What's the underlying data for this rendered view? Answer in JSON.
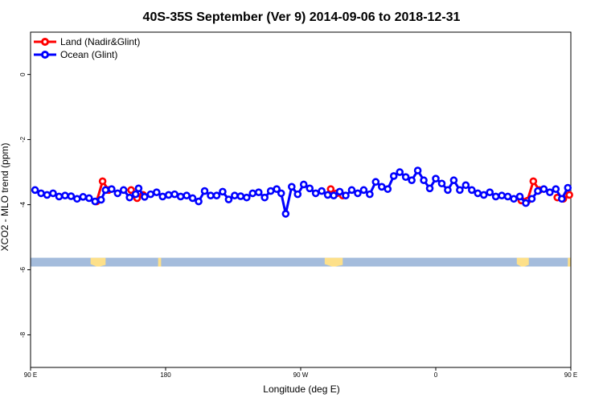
{
  "chart_data": {
    "type": "line",
    "title": "40S-35S September (Ver 9)   2014-09-06 to 2018-12-31",
    "xlabel": "Longitude (deg E)",
    "ylabel": "XCO2 - MLO trend (ppm)",
    "xlim": [
      90,
      450
    ],
    "ylim": [
      -9,
      1.3
    ],
    "x_ticks": [
      {
        "value": 90,
        "label": "90 E"
      },
      {
        "value": 180,
        "label": "180"
      },
      {
        "value": 270,
        "label": "90 W"
      },
      {
        "value": 360,
        "label": "0"
      },
      {
        "value": 450,
        "label": "90 E"
      },
      {
        "value": 540,
        "label": "180"
      }
    ],
    "y_ticks": [
      {
        "value": 0,
        "label": "0"
      },
      {
        "value": -2,
        "label": "-2"
      },
      {
        "value": -4,
        "label": "-4"
      },
      {
        "value": -6,
        "label": "-6"
      },
      {
        "value": -8,
        "label": "-8"
      }
    ],
    "grid": false,
    "legend_position": "top-left",
    "land_band": {
      "y_top": -5.63,
      "y_bottom": -5.9,
      "ocean_color": "#a4bcdc",
      "land_color": "#fde08a"
    },
    "land_patches": [
      {
        "x_from": 130,
        "x_to": 140
      },
      {
        "x_from": 175,
        "x_to": 177
      },
      {
        "x_from": 286,
        "x_to": 298
      },
      {
        "x_from": 414,
        "x_to": 422
      },
      {
        "x_from": 448,
        "x_to": 450
      }
    ],
    "series": [
      {
        "name": "Land (Nadir&Glint)",
        "color": "#ff0000",
        "segments": [
          [
            [
              134,
              -3.9
            ],
            [
              138,
              -3.28
            ],
            [
              142,
              -3.55
            ]
          ],
          [
            [
              157,
              -3.55
            ],
            [
              161,
              -3.8
            ],
            [
              165,
              -3.7
            ]
          ],
          [
            [
              290,
              -3.52
            ],
            [
              294,
              -3.65
            ],
            [
              298,
              -3.72
            ]
          ],
          [
            [
              417,
              -3.87
            ],
            [
              421,
              -3.88
            ],
            [
              425,
              -3.28
            ],
            [
              429,
              -3.55
            ]
          ],
          [
            [
              441,
              -3.78
            ],
            [
              445,
              -3.82
            ],
            [
              449,
              -3.7
            ]
          ]
        ]
      },
      {
        "name": "Ocean (Glint)",
        "color": "#0000ff",
        "values": [
          [
            93,
            -3.55
          ],
          [
            97,
            -3.65
          ],
          [
            101,
            -3.7
          ],
          [
            105,
            -3.65
          ],
          [
            109,
            -3.75
          ],
          [
            113,
            -3.72
          ],
          [
            117,
            -3.74
          ],
          [
            121,
            -3.82
          ],
          [
            125,
            -3.76
          ],
          [
            129,
            -3.8
          ],
          [
            133,
            -3.9
          ],
          [
            137,
            -3.85
          ],
          [
            140,
            -3.55
          ],
          [
            144,
            -3.52
          ],
          [
            148,
            -3.65
          ],
          [
            152,
            -3.55
          ],
          [
            156,
            -3.78
          ],
          [
            160,
            -3.68
          ],
          [
            162,
            -3.5
          ],
          [
            166,
            -3.76
          ],
          [
            170,
            -3.68
          ],
          [
            174,
            -3.62
          ],
          [
            178,
            -3.75
          ],
          [
            182,
            -3.7
          ],
          [
            186,
            -3.68
          ],
          [
            190,
            -3.75
          ],
          [
            194,
            -3.72
          ],
          [
            198,
            -3.8
          ],
          [
            202,
            -3.9
          ],
          [
            206,
            -3.58
          ],
          [
            210,
            -3.72
          ],
          [
            214,
            -3.72
          ],
          [
            218,
            -3.6
          ],
          [
            222,
            -3.84
          ],
          [
            226,
            -3.72
          ],
          [
            230,
            -3.74
          ],
          [
            234,
            -3.78
          ],
          [
            238,
            -3.65
          ],
          [
            242,
            -3.62
          ],
          [
            246,
            -3.78
          ],
          [
            250,
            -3.58
          ],
          [
            254,
            -3.52
          ],
          [
            257,
            -3.65
          ],
          [
            260,
            -4.28
          ],
          [
            264,
            -3.45
          ],
          [
            268,
            -3.68
          ],
          [
            272,
            -3.38
          ],
          [
            276,
            -3.5
          ],
          [
            280,
            -3.65
          ],
          [
            284,
            -3.58
          ],
          [
            288,
            -3.7
          ],
          [
            292,
            -3.72
          ],
          [
            296,
            -3.6
          ],
          [
            300,
            -3.72
          ],
          [
            304,
            -3.55
          ],
          [
            308,
            -3.65
          ],
          [
            312,
            -3.55
          ],
          [
            316,
            -3.68
          ],
          [
            320,
            -3.3
          ],
          [
            324,
            -3.45
          ],
          [
            328,
            -3.52
          ],
          [
            332,
            -3.12
          ],
          [
            336,
            -3.0
          ],
          [
            340,
            -3.15
          ],
          [
            344,
            -3.25
          ],
          [
            348,
            -2.95
          ],
          [
            352,
            -3.25
          ],
          [
            356,
            -3.5
          ],
          [
            360,
            -3.2
          ],
          [
            364,
            -3.35
          ],
          [
            368,
            -3.55
          ],
          [
            372,
            -3.25
          ],
          [
            376,
            -3.55
          ],
          [
            380,
            -3.4
          ],
          [
            384,
            -3.55
          ],
          [
            388,
            -3.65
          ],
          [
            392,
            -3.7
          ],
          [
            396,
            -3.62
          ],
          [
            400,
            -3.75
          ],
          [
            404,
            -3.72
          ],
          [
            408,
            -3.75
          ],
          [
            412,
            -3.82
          ],
          [
            416,
            -3.75
          ],
          [
            420,
            -3.95
          ],
          [
            424,
            -3.82
          ],
          [
            428,
            -3.58
          ],
          [
            432,
            -3.52
          ],
          [
            436,
            -3.62
          ],
          [
            440,
            -3.52
          ],
          [
            444,
            -3.82
          ],
          [
            448,
            -3.48
          ]
        ]
      }
    ]
  }
}
